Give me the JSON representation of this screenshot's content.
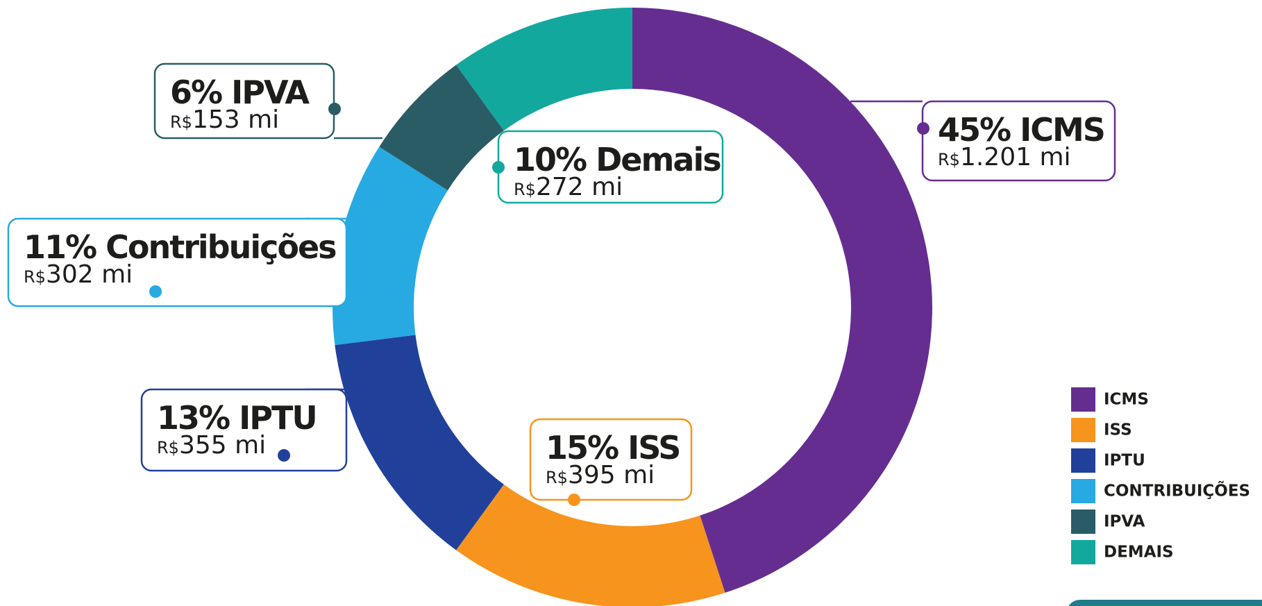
{
  "chart_data": {
    "type": "donut",
    "currency": "R$",
    "series": [
      {
        "name": "ICMS",
        "label": "ICMS",
        "color": "#662d91",
        "values": [
          45
        ],
        "value_labels": [
          "45%"
        ],
        "amount": "1.201 mi"
      },
      {
        "name": "ISS",
        "label": "ISS",
        "color": "#f7941d",
        "values": [
          15
        ],
        "value_labels": [
          "15%"
        ],
        "amount": "395 mi"
      },
      {
        "name": "IPTU",
        "label": "IPTU",
        "color": "#21409a",
        "values": [
          13
        ],
        "value_labels": [
          "13%"
        ],
        "amount": "355 mi"
      },
      {
        "name": "CONTRIBUIÇÕES",
        "label": "Contribuições",
        "color": "#27aae1",
        "values": [
          11
        ],
        "value_labels": [
          "11%"
        ],
        "amount": "302 mi"
      },
      {
        "name": "IPVA",
        "label": "IPVA",
        "color": "#2a5c66",
        "values": [
          6
        ],
        "value_labels": [
          "6%"
        ],
        "amount": "153 mi"
      },
      {
        "name": "DEMAIS",
        "label": "Demais",
        "color": "#13a89e",
        "values": [
          10
        ],
        "value_labels": [
          "10%"
        ],
        "amount": "272 mi"
      }
    ],
    "legend": "right"
  }
}
